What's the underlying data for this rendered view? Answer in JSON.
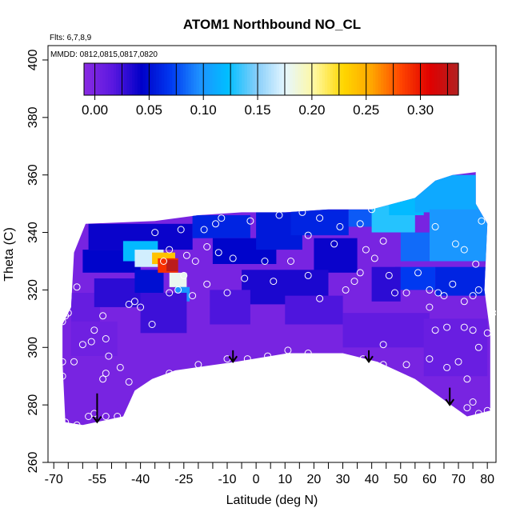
{
  "chart_data": {
    "type": "heatmap",
    "title": "ATOM1 Northbound NO_CL",
    "flights_note": "Flts: 6,7,8,9",
    "dates_note": "MMDD: 0812,0815,0817,0820",
    "xlabel": "Latitude (deg N)",
    "ylabel": "Theta (C)",
    "xlim": [
      -72,
      83
    ],
    "ylim": [
      260,
      405
    ],
    "x_ticks": [
      -70,
      -55,
      -40,
      -25,
      -10,
      0,
      10,
      20,
      30,
      40,
      50,
      60,
      70,
      80
    ],
    "x_tick_labels": [
      "-70",
      "-55",
      "-40",
      "-25",
      "-10",
      "0",
      "10",
      "20",
      "30",
      "40",
      "50",
      "60",
      "70",
      "80"
    ],
    "x_minor_ticks": [
      -65,
      -60,
      -50,
      -45,
      -35,
      -30,
      -20,
      -15,
      -5,
      5,
      15,
      25,
      35,
      45,
      55,
      65,
      75
    ],
    "y_ticks": [
      260,
      280,
      300,
      320,
      340,
      360,
      380,
      400
    ],
    "y_tick_labels": [
      "260",
      "280",
      "300",
      "320",
      "340",
      "360",
      "380",
      "400"
    ],
    "colorbar": {
      "min": -0.01,
      "max": 0.335,
      "ticks": [
        0.0,
        0.05,
        0.1,
        0.15,
        0.2,
        0.25,
        0.3
      ],
      "tick_labels": [
        "0.00",
        "0.05",
        "0.10",
        "0.15",
        "0.20",
        "0.25",
        "0.30"
      ],
      "colors": [
        "#8a2be2",
        "#5a18e0",
        "#0000c8",
        "#0038f0",
        "#1e90ff",
        "#00bfff",
        "#87cefa",
        "#e6f7ff",
        "#fff8a0",
        "#ffd700",
        "#ffa500",
        "#ff4500",
        "#e00000",
        "#b22222"
      ]
    },
    "region_outline": [
      [
        -67,
        308
      ],
      [
        -64,
        314
      ],
      [
        -63,
        333
      ],
      [
        -59,
        343
      ],
      [
        -35,
        344
      ],
      [
        -20,
        346
      ],
      [
        -5,
        347
      ],
      [
        10,
        347
      ],
      [
        25,
        348
      ],
      [
        40,
        348
      ],
      [
        55,
        352
      ],
      [
        62,
        358
      ],
      [
        68,
        360
      ],
      [
        76,
        361
      ],
      [
        76,
        350
      ],
      [
        80,
        343
      ],
      [
        79,
        320
      ],
      [
        81,
        305
      ],
      [
        81,
        278
      ],
      [
        73,
        276
      ],
      [
        66,
        281
      ],
      [
        55,
        289
      ],
      [
        42,
        295
      ],
      [
        30,
        298
      ],
      [
        11,
        298
      ],
      [
        -7,
        295
      ],
      [
        -28,
        292
      ],
      [
        -36,
        289
      ],
      [
        -42,
        285
      ],
      [
        -46,
        276
      ],
      [
        -60,
        273
      ],
      [
        -66,
        274
      ],
      [
        -67,
        295
      ]
    ],
    "cells": [
      {
        "x": -64,
        "y": 279,
        "w": 16,
        "h": 18,
        "v": 0.0
      },
      {
        "x": -64,
        "y": 297,
        "w": 16,
        "h": 12,
        "v": 0.005
      },
      {
        "x": -64,
        "y": 309,
        "w": 10,
        "h": 10,
        "v": 0.01
      },
      {
        "x": -56,
        "y": 314,
        "w": 24,
        "h": 10,
        "v": 0.03
      },
      {
        "x": -60,
        "y": 326,
        "w": 20,
        "h": 8,
        "v": 0.045
      },
      {
        "x": -58,
        "y": 334,
        "w": 36,
        "h": 9,
        "v": 0.04
      },
      {
        "x": -42,
        "y": 319,
        "w": 10,
        "h": 8,
        "v": 0.05
      },
      {
        "x": -46,
        "y": 330,
        "w": 12,
        "h": 7,
        "v": 0.12
      },
      {
        "x": -42,
        "y": 328,
        "w": 10,
        "h": 6,
        "v": 0.17
      },
      {
        "x": -36,
        "y": 329,
        "w": 8,
        "h": 4,
        "v": 0.24
      },
      {
        "x": -34,
        "y": 326,
        "w": 7,
        "h": 5,
        "v": 0.29
      },
      {
        "x": -31,
        "y": 326.5,
        "w": 4,
        "h": 4,
        "v": 0.33
      },
      {
        "x": -30,
        "y": 321,
        "w": 6,
        "h": 5,
        "v": 0.18
      },
      {
        "x": -28,
        "y": 316,
        "w": 5,
        "h": 5,
        "v": 0.1
      },
      {
        "x": -22,
        "y": 338,
        "w": 20,
        "h": 8,
        "v": 0.06
      },
      {
        "x": -15,
        "y": 329,
        "w": 22,
        "h": 9,
        "v": 0.045
      },
      {
        "x": 0,
        "y": 334,
        "w": 16,
        "h": 13,
        "v": 0.055
      },
      {
        "x": 12,
        "y": 339,
        "w": 20,
        "h": 9,
        "v": 0.06
      },
      {
        "x": 20,
        "y": 326,
        "w": 15,
        "h": 12,
        "v": 0.04
      },
      {
        "x": 32,
        "y": 342,
        "w": 12,
        "h": 6,
        "v": 0.08
      },
      {
        "x": 40,
        "y": 340,
        "w": 15,
        "h": 11,
        "v": 0.13
      },
      {
        "x": 46,
        "y": 346,
        "w": 12,
        "h": 7,
        "v": 0.12
      },
      {
        "x": 55,
        "y": 347,
        "w": 22,
        "h": 13,
        "v": 0.11
      },
      {
        "x": 60,
        "y": 330,
        "w": 20,
        "h": 18,
        "v": 0.1
      },
      {
        "x": 50,
        "y": 330,
        "w": 10,
        "h": 10,
        "v": 0.085
      },
      {
        "x": 48,
        "y": 320,
        "w": 14,
        "h": 8,
        "v": 0.07
      },
      {
        "x": 62,
        "y": 318,
        "w": 18,
        "h": 10,
        "v": 0.06
      },
      {
        "x": 40,
        "y": 316,
        "w": 10,
        "h": 12,
        "v": 0.03
      },
      {
        "x": -5,
        "y": 315,
        "w": 30,
        "h": 12,
        "v": 0.035
      },
      {
        "x": -40,
        "y": 305,
        "w": 16,
        "h": 14,
        "v": 0.025
      },
      {
        "x": -16,
        "y": 308,
        "w": 14,
        "h": 12,
        "v": 0.02
      },
      {
        "x": 10,
        "y": 308,
        "w": 20,
        "h": 10,
        "v": 0.02
      },
      {
        "x": 30,
        "y": 300,
        "w": 30,
        "h": 12,
        "v": 0.012
      },
      {
        "x": 58,
        "y": 290,
        "w": 22,
        "h": 20,
        "v": 0.008
      }
    ],
    "points": [
      [
        -66,
        274
      ],
      [
        -62,
        273
      ],
      [
        -58,
        276
      ],
      [
        -56,
        277
      ],
      [
        -52,
        276
      ],
      [
        -48,
        276
      ],
      [
        -44,
        288
      ],
      [
        -30,
        291
      ],
      [
        -20,
        294
      ],
      [
        -10,
        296
      ],
      [
        -3,
        296
      ],
      [
        4,
        297
      ],
      [
        11,
        299
      ],
      [
        18,
        298
      ],
      [
        25,
        296
      ],
      [
        32,
        295
      ],
      [
        37,
        296
      ],
      [
        44,
        294
      ],
      [
        52,
        294
      ],
      [
        60,
        296
      ],
      [
        66,
        293
      ],
      [
        70,
        295
      ],
      [
        73,
        289
      ],
      [
        75,
        281
      ],
      [
        73,
        279
      ],
      [
        77,
        277
      ],
      [
        -67,
        290
      ],
      [
        -67,
        295
      ],
      [
        -63,
        295
      ],
      [
        -60,
        301
      ],
      [
        -57,
        302
      ],
      [
        -56,
        306
      ],
      [
        -52,
        303
      ],
      [
        -51,
        297
      ],
      [
        -47,
        293
      ],
      [
        -52,
        291
      ],
      [
        -53,
        289
      ],
      [
        -67,
        309
      ],
      [
        -66,
        311
      ],
      [
        -65,
        312
      ],
      [
        -62,
        321
      ],
      [
        -44,
        315
      ],
      [
        -42,
        316
      ],
      [
        -40,
        314
      ],
      [
        -36,
        308
      ],
      [
        -30,
        319
      ],
      [
        -27,
        320
      ],
      [
        -22,
        318
      ],
      [
        -17,
        322
      ],
      [
        -25,
        325
      ],
      [
        -32,
        330
      ],
      [
        -30,
        334
      ],
      [
        -35,
        340
      ],
      [
        -26,
        341
      ],
      [
        -18,
        341
      ],
      [
        -14,
        343
      ],
      [
        -12,
        345
      ],
      [
        -2,
        344
      ],
      [
        8,
        346
      ],
      [
        16,
        347
      ],
      [
        22,
        345
      ],
      [
        29,
        342
      ],
      [
        36,
        343
      ],
      [
        40,
        348
      ],
      [
        44,
        337
      ],
      [
        38,
        334
      ],
      [
        27,
        336
      ],
      [
        18,
        339
      ],
      [
        12,
        330
      ],
      [
        6,
        323
      ],
      [
        -4,
        324
      ],
      [
        -10,
        319
      ],
      [
        -21,
        330
      ],
      [
        -24,
        332
      ],
      [
        -17,
        335
      ],
      [
        -13,
        333
      ],
      [
        -8,
        331
      ],
      [
        3,
        330
      ],
      [
        18,
        325
      ],
      [
        22,
        317
      ],
      [
        31,
        320
      ],
      [
        34,
        323
      ],
      [
        36,
        326
      ],
      [
        41,
        331
      ],
      [
        46,
        325
      ],
      [
        48,
        319
      ],
      [
        52,
        319
      ],
      [
        60,
        320
      ],
      [
        63,
        319
      ],
      [
        65,
        318
      ],
      [
        68,
        322
      ],
      [
        72,
        316
      ],
      [
        75,
        318
      ],
      [
        77,
        320
      ],
      [
        76,
        329
      ],
      [
        72,
        334
      ],
      [
        69,
        336
      ],
      [
        78,
        344
      ],
      [
        62,
        342
      ],
      [
        56,
        326
      ],
      [
        60,
        314
      ],
      [
        62,
        306
      ],
      [
        66,
        307
      ],
      [
        72,
        307
      ],
      [
        75,
        306
      ],
      [
        77,
        300
      ],
      [
        80,
        305
      ],
      [
        82,
        312
      ],
      [
        80,
        278
      ],
      [
        28,
        289
      ],
      [
        44,
        301
      ],
      [
        -53,
        311
      ]
    ],
    "arrows": [
      {
        "x": -55,
        "y_top": 284,
        "y_tip": 274
      },
      {
        "x": -8,
        "y_top": 299,
        "y_tip": 295
      },
      {
        "x": 39,
        "y_top": 299,
        "y_tip": 295
      },
      {
        "x": 67,
        "y_top": 286,
        "y_tip": 280
      }
    ]
  }
}
